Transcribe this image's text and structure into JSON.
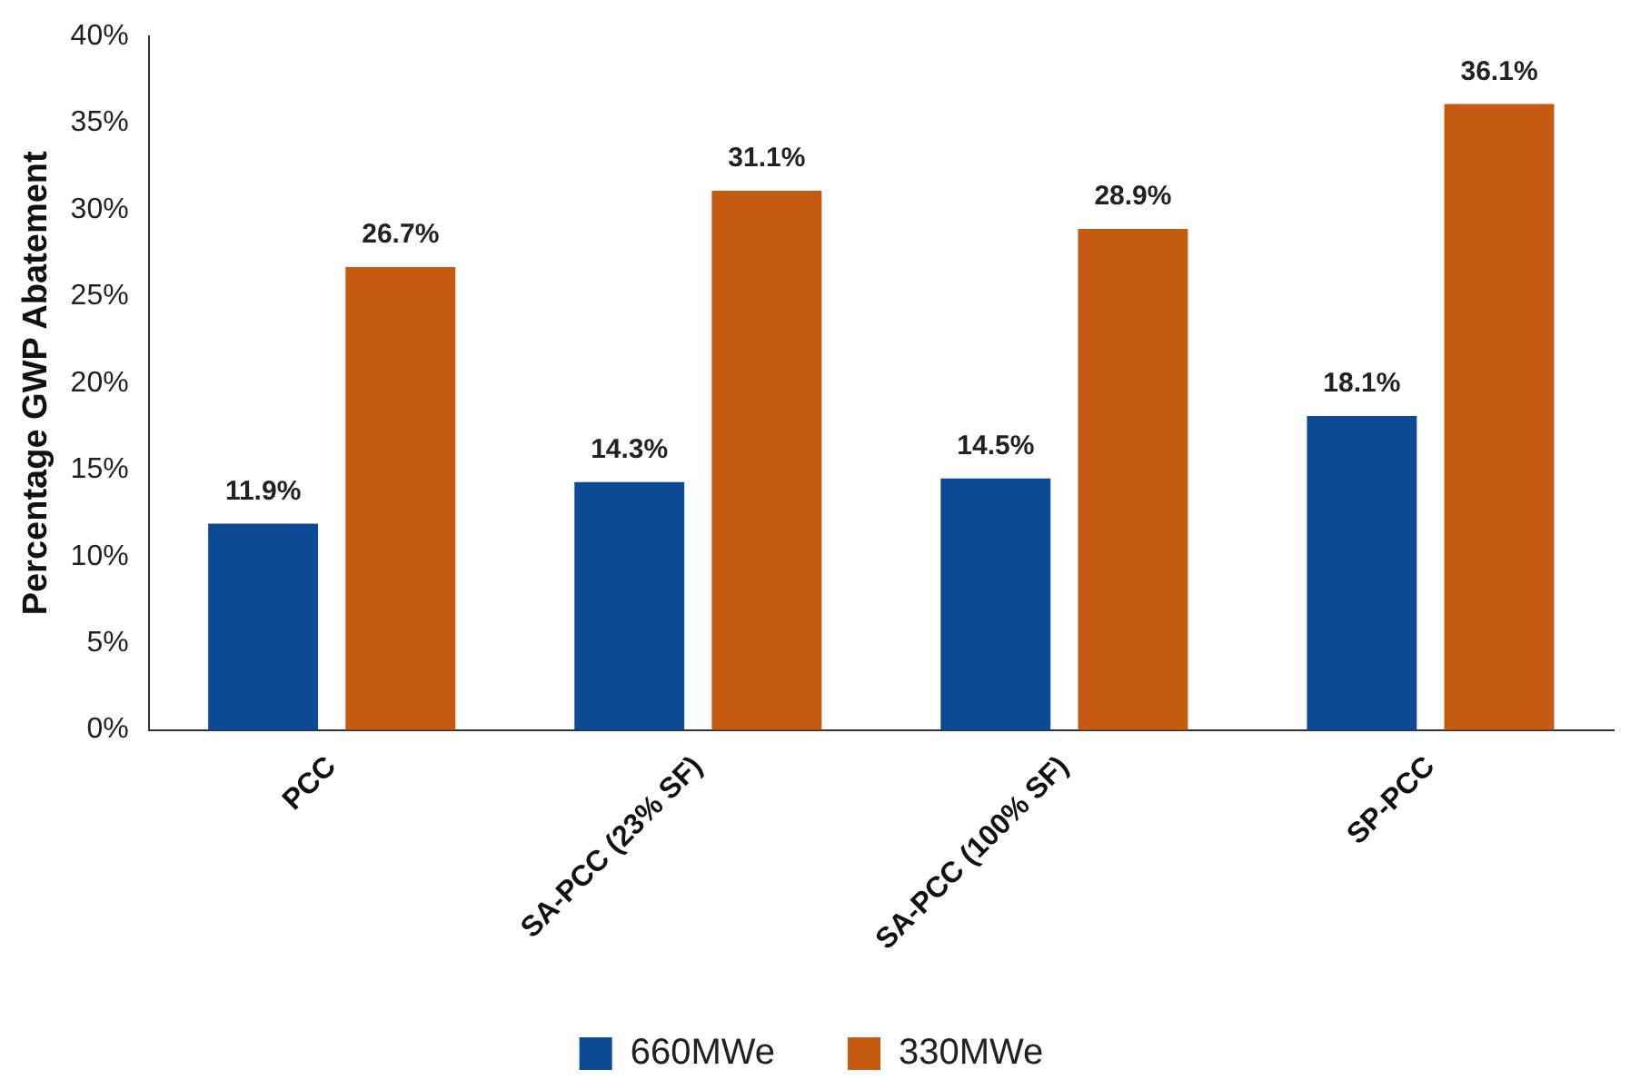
{
  "chart_data": {
    "type": "bar",
    "ylabel": "Percentage GWP Abatement",
    "categories": [
      "PCC",
      "SA-PCC (23% SF)",
      "SA-PCC (100% SF)",
      "SP-PCC"
    ],
    "series": [
      {
        "name": "660MWe",
        "color": "#0d4a96",
        "values": [
          11.9,
          14.3,
          14.5,
          18.1
        ],
        "value_labels": [
          "11.9%",
          "14.3%",
          "14.5%",
          "18.1%"
        ]
      },
      {
        "name": "330MWe",
        "color": "#c55a11",
        "values": [
          26.7,
          31.1,
          28.9,
          36.1
        ],
        "value_labels": [
          "26.7%",
          "31.1%",
          "28.9%",
          "36.1%"
        ]
      }
    ],
    "ylim": [
      0,
      40
    ],
    "yticks": [
      {
        "value": 0,
        "label": "0%"
      },
      {
        "value": 5,
        "label": "5%"
      },
      {
        "value": 10,
        "label": "10%"
      },
      {
        "value": 15,
        "label": "15%"
      },
      {
        "value": 20,
        "label": "20%"
      },
      {
        "value": 25,
        "label": "25%"
      },
      {
        "value": 30,
        "label": "30%"
      },
      {
        "value": 35,
        "label": "35%"
      },
      {
        "value": 40,
        "label": "40%"
      }
    ],
    "grid": false,
    "legend": "bottom"
  }
}
